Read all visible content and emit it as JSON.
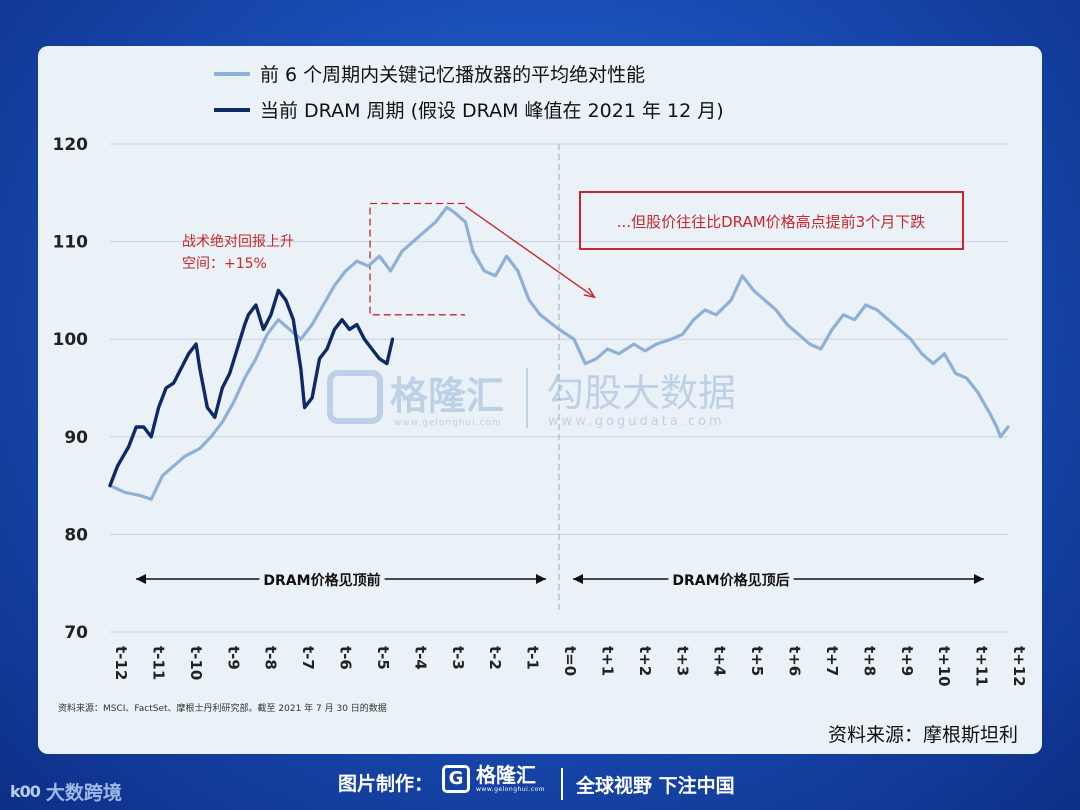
{
  "chart_data": {
    "type": "line",
    "legend": [
      {
        "label": "前 6 个周期内关键记忆播放器的平均绝对性能",
        "color": "#8fb0d6"
      },
      {
        "label": "当前 DRAM 周期 (假设 DRAM 峰值在 2021 年 12 月)",
        "color": "#0e2a66"
      }
    ],
    "legend_placement": "top-left",
    "y_ticks": [
      "120",
      "110",
      "100",
      "90",
      "80",
      "70"
    ],
    "ylim": [
      70,
      120
    ],
    "x_ticks": [
      "t-12",
      "t-11",
      "t-10",
      "t-9",
      "t-8",
      "t-7",
      "t-6",
      "t-5",
      "t-4",
      "t-3",
      "t-2",
      "t-1",
      "t=0",
      "t+1",
      "t+2",
      "t+3",
      "t+4",
      "t+5",
      "t+6",
      "t+7",
      "t+8",
      "t+9",
      "t+10",
      "t+11",
      "t+12"
    ],
    "xlim": [
      -12,
      12
    ],
    "grid": "horizontal",
    "series": [
      {
        "name": "前 6 个周期内关键记忆播放器的平均绝对性能",
        "color": "#8fb0d6",
        "points": [
          [
            -12,
            85
          ],
          [
            -11.6,
            84.3
          ],
          [
            -11.2,
            84
          ],
          [
            -10.9,
            83.6
          ],
          [
            -10.6,
            86
          ],
          [
            -10.3,
            87
          ],
          [
            -10,
            88
          ],
          [
            -9.6,
            88.8
          ],
          [
            -9.3,
            90
          ],
          [
            -9,
            91.5
          ],
          [
            -8.7,
            93.5
          ],
          [
            -8.4,
            96
          ],
          [
            -8.1,
            98
          ],
          [
            -7.8,
            100.5
          ],
          [
            -7.5,
            102
          ],
          [
            -7.2,
            101
          ],
          [
            -6.9,
            100
          ],
          [
            -6.6,
            101.5
          ],
          [
            -6.3,
            103.5
          ],
          [
            -6,
            105.5
          ],
          [
            -5.7,
            107
          ],
          [
            -5.4,
            108
          ],
          [
            -5.1,
            107.5
          ],
          [
            -4.8,
            108.5
          ],
          [
            -4.5,
            107
          ],
          [
            -4.2,
            109
          ],
          [
            -3.9,
            110
          ],
          [
            -3.6,
            111
          ],
          [
            -3.3,
            112
          ],
          [
            -3,
            113.5
          ],
          [
            -2.8,
            113
          ],
          [
            -2.5,
            112
          ],
          [
            -2.3,
            109
          ],
          [
            -2,
            107
          ],
          [
            -1.7,
            106.5
          ],
          [
            -1.4,
            108.5
          ],
          [
            -1.1,
            107
          ],
          [
            -0.8,
            104
          ],
          [
            -0.5,
            102.5
          ],
          [
            0,
            101
          ],
          [
            0.4,
            100
          ],
          [
            0.7,
            97.5
          ],
          [
            1.0,
            98
          ],
          [
            1.3,
            99
          ],
          [
            1.6,
            98.5
          ],
          [
            2.0,
            99.5
          ],
          [
            2.3,
            98.8
          ],
          [
            2.6,
            99.5
          ],
          [
            3.0,
            100
          ],
          [
            3.3,
            100.5
          ],
          [
            3.6,
            102
          ],
          [
            3.9,
            103
          ],
          [
            4.2,
            102.5
          ],
          [
            4.6,
            104
          ],
          [
            4.9,
            106.5
          ],
          [
            5.2,
            105
          ],
          [
            5.5,
            104
          ],
          [
            5.8,
            103
          ],
          [
            6.1,
            101.5
          ],
          [
            6.4,
            100.5
          ],
          [
            6.7,
            99.5
          ],
          [
            7.0,
            99
          ],
          [
            7.3,
            101
          ],
          [
            7.6,
            102.5
          ],
          [
            7.9,
            102
          ],
          [
            8.2,
            103.5
          ],
          [
            8.5,
            103
          ],
          [
            8.8,
            102
          ],
          [
            9.1,
            101
          ],
          [
            9.4,
            100
          ],
          [
            9.7,
            98.5
          ],
          [
            10.0,
            97.5
          ],
          [
            10.3,
            98.5
          ],
          [
            10.6,
            96.5
          ],
          [
            10.9,
            96
          ],
          [
            11.2,
            94.5
          ],
          [
            11.5,
            92.5
          ],
          [
            11.7,
            91
          ],
          [
            11.8,
            90
          ],
          [
            12,
            91
          ]
        ]
      },
      {
        "name": "当前 DRAM 周期 (假设 DRAM 峰值在 2021 年 12 月)",
        "color": "#0e2a66",
        "points": [
          [
            -12,
            85
          ],
          [
            -11.8,
            87
          ],
          [
            -11.5,
            89
          ],
          [
            -11.3,
            91
          ],
          [
            -11.1,
            91
          ],
          [
            -10.9,
            90
          ],
          [
            -10.7,
            93
          ],
          [
            -10.5,
            95
          ],
          [
            -10.3,
            95.5
          ],
          [
            -10.1,
            97
          ],
          [
            -9.9,
            98.5
          ],
          [
            -9.7,
            99.5
          ],
          [
            -9.6,
            97
          ],
          [
            -9.4,
            93
          ],
          [
            -9.2,
            92
          ],
          [
            -9.0,
            95
          ],
          [
            -8.8,
            96.5
          ],
          [
            -8.6,
            99
          ],
          [
            -8.4,
            101.5
          ],
          [
            -8.3,
            102.5
          ],
          [
            -8.1,
            103.5
          ],
          [
            -7.9,
            101
          ],
          [
            -7.7,
            102.5
          ],
          [
            -7.5,
            105
          ],
          [
            -7.3,
            104
          ],
          [
            -7.1,
            102
          ],
          [
            -6.9,
            97
          ],
          [
            -6.8,
            93
          ],
          [
            -6.6,
            94
          ],
          [
            -6.4,
            98
          ],
          [
            -6.2,
            99
          ],
          [
            -6.0,
            101
          ],
          [
            -5.8,
            102
          ],
          [
            -5.6,
            101
          ],
          [
            -5.4,
            101.5
          ],
          [
            -5.2,
            100
          ],
          [
            -5.0,
            99
          ],
          [
            -4.8,
            98
          ],
          [
            -4.6,
            97.5
          ],
          [
            -4.45,
            100
          ]
        ]
      }
    ],
    "annotations": {
      "upside_label": [
        "战术绝对回报上升",
        "空间：+15%"
      ],
      "callout": "...但股价往往比DRAM价格高点提前3个月下跌",
      "before_peak": "DRAM价格见顶前",
      "after_peak": "DRAM价格见顶后"
    }
  },
  "watermark": {
    "gelonghui": "格隆汇",
    "gelonghui_url": "www.gelonghui.com",
    "gogudata": "勾股大数据",
    "gogudata_url": "www.gogudata.com"
  },
  "source_note": "资料来源：MSCI、FactSet、摩根士丹利研究部。截至 2021 年 7 月 30 日的数据",
  "credit": "资料来源：摩根斯坦利",
  "bottom_bar": {
    "left_logo": "大数跨境",
    "left_logo_mark": "k00",
    "made_by": "图片制作：",
    "brand_mark": "G",
    "brand": "格隆汇",
    "brand_url": "www.gelonghui.com",
    "slogan": "全球视野 下注中国"
  }
}
